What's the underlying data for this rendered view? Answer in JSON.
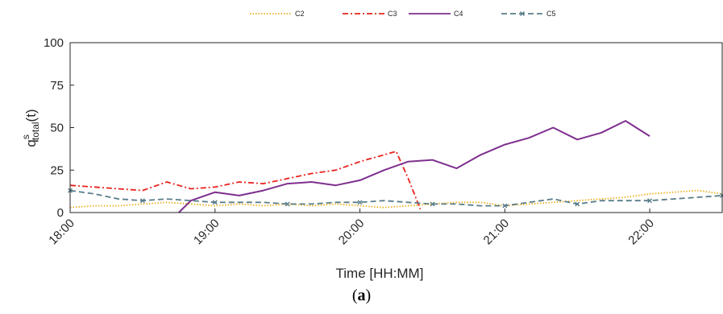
{
  "caption": {
    "open": "(",
    "letter": "a",
    "close": ")"
  },
  "chart_data": {
    "type": "line",
    "xlabel": "Time [HH:MM]",
    "ylabel_main": "q",
    "ylabel_sup": "s",
    "ylabel_sub": "total",
    "ylabel_suffix": "(t)",
    "xlim": [
      "18:00",
      "22:30"
    ],
    "ylim": [
      0,
      100
    ],
    "xticks": [
      "18:00",
      "19:00",
      "20:00",
      "21:00",
      "22:00"
    ],
    "yticks": [
      0,
      25,
      50,
      75,
      100
    ],
    "grid": false,
    "legend_position": "top-center",
    "series": [
      {
        "name": "C2",
        "color": "#EDB120",
        "style": "dotted",
        "x": [
          "18:00",
          "18:10",
          "18:20",
          "18:30",
          "18:40",
          "18:50",
          "19:00",
          "19:10",
          "19:20",
          "19:30",
          "19:40",
          "19:50",
          "20:00",
          "20:10",
          "20:20",
          "20:30",
          "20:40",
          "20:50",
          "21:00",
          "21:10",
          "21:20",
          "21:30",
          "21:40",
          "21:50",
          "22:00",
          "22:10",
          "22:20",
          "22:30"
        ],
        "y": [
          3,
          4,
          4,
          5,
          6,
          5,
          4,
          5,
          4,
          5,
          4,
          5,
          4,
          3,
          4,
          5,
          6,
          6,
          4,
          5,
          6,
          7,
          8,
          9,
          11,
          12,
          13,
          11
        ]
      },
      {
        "name": "C3",
        "color": "#E8241E",
        "style": "dashdot",
        "x": [
          "18:00",
          "18:10",
          "18:20",
          "18:30",
          "18:40",
          "18:50",
          "19:00",
          "19:10",
          "19:20",
          "19:30",
          "19:40",
          "19:50",
          "20:00",
          "20:10",
          "20:15",
          "20:20",
          "20:25"
        ],
        "y": [
          16,
          15,
          14,
          13,
          18,
          14,
          15,
          18,
          17,
          20,
          23,
          25,
          30,
          34,
          36,
          20,
          2
        ]
      },
      {
        "name": "C4",
        "color": "#7E2F8E",
        "style": "solid",
        "x": [
          "18:45",
          "18:50",
          "19:00",
          "19:10",
          "19:20",
          "19:30",
          "19:40",
          "19:50",
          "20:00",
          "20:10",
          "20:20",
          "20:30",
          "20:40",
          "20:50",
          "21:00",
          "21:10",
          "21:20",
          "21:30",
          "21:40",
          "21:50",
          "22:00"
        ],
        "y": [
          0,
          7,
          12,
          10,
          13,
          17,
          18,
          16,
          19,
          25,
          30,
          31,
          26,
          34,
          40,
          44,
          50,
          43,
          47,
          54,
          45
        ]
      },
      {
        "name": "C5",
        "color": "#5A7D8A",
        "style": "dashed",
        "x": [
          "18:00",
          "18:10",
          "18:20",
          "18:30",
          "18:40",
          "18:50",
          "19:00",
          "19:10",
          "19:20",
          "19:30",
          "19:40",
          "19:50",
          "20:00",
          "20:10",
          "20:20",
          "20:30",
          "20:40",
          "20:50",
          "21:00",
          "21:10",
          "21:20",
          "21:30",
          "21:40",
          "21:50",
          "22:00",
          "22:10",
          "22:20",
          "22:30"
        ],
        "y": [
          13,
          11,
          8,
          7,
          8,
          7,
          6,
          6,
          6,
          5,
          5,
          6,
          6,
          7,
          6,
          5,
          5,
          4,
          4,
          6,
          8,
          5,
          7,
          7,
          7,
          8,
          9,
          10
        ]
      }
    ]
  }
}
